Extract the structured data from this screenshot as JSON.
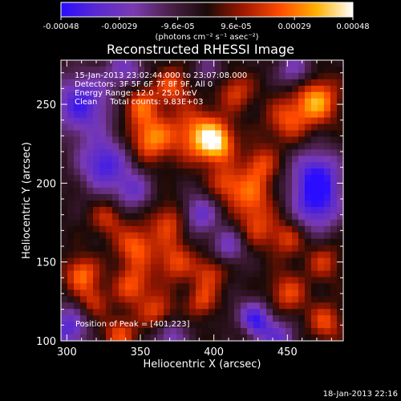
{
  "chart_data": {
    "type": "heatmap",
    "title": "Reconstructed RHESSI Image",
    "xlabel": "Heliocentric X (arcsec)",
    "ylabel": "Heliocentric Y (arcsec)",
    "xlim": [
      296,
      488
    ],
    "ylim": [
      100,
      278
    ],
    "x_ticks": [
      "300",
      "350",
      "400",
      "450"
    ],
    "y_ticks": [
      "100",
      "150",
      "200",
      "250"
    ],
    "colorbar": {
      "range": [
        -0.00048,
        0.00048
      ],
      "ticks": [
        "-0.00048",
        "-0.00029",
        "-9.6e-05",
        "9.6e-05",
        "0.00029",
        "0.00048"
      ],
      "unit_label": "(photons cm⁻² s⁻¹ asec⁻²)"
    },
    "info_lines": [
      "15-Jan-2013 23:02:44.000 to 23:07:08.000",
      "Detectors: 3F 5F 6F 7F 8F 9F, All 0",
      "Energy Range: 12.0 - 25.0 keV",
      "Clean     Total counts: 9.83E+03"
    ],
    "peak_label": "Position of Peak = [401,223]",
    "peak_position": [
      401,
      223
    ],
    "colors": {
      "scale": [
        "#2a0cff",
        "#5a2ad0",
        "#7a3ab0",
        "#4a2048",
        "#1a0a08",
        "#a01800",
        "#ff4a00",
        "#ffb000",
        "#ffffff"
      ]
    },
    "blobs": [
      {
        "x": 401,
        "y": 226,
        "amp": 1.0,
        "s": 9
      },
      {
        "x": 386,
        "y": 232,
        "amp": 0.6,
        "s": 12
      },
      {
        "x": 357,
        "y": 228,
        "amp": 0.75,
        "s": 10
      },
      {
        "x": 350,
        "y": 250,
        "amp": 0.6,
        "s": 9
      },
      {
        "x": 372,
        "y": 262,
        "amp": 0.55,
        "s": 8
      },
      {
        "x": 470,
        "y": 252,
        "amp": 0.85,
        "s": 10
      },
      {
        "x": 450,
        "y": 240,
        "amp": 0.55,
        "s": 10
      },
      {
        "x": 432,
        "y": 212,
        "amp": 0.55,
        "s": 8
      },
      {
        "x": 425,
        "y": 192,
        "amp": 0.6,
        "s": 10
      },
      {
        "x": 408,
        "y": 200,
        "amp": 0.5,
        "s": 8
      },
      {
        "x": 430,
        "y": 172,
        "amp": 0.45,
        "s": 9
      },
      {
        "x": 450,
        "y": 165,
        "amp": 0.5,
        "s": 8
      },
      {
        "x": 370,
        "y": 175,
        "amp": 0.55,
        "s": 9
      },
      {
        "x": 347,
        "y": 160,
        "amp": 0.65,
        "s": 9
      },
      {
        "x": 328,
        "y": 178,
        "amp": 0.45,
        "s": 8
      },
      {
        "x": 373,
        "y": 150,
        "amp": 0.55,
        "s": 9
      },
      {
        "x": 397,
        "y": 143,
        "amp": 0.5,
        "s": 8
      },
      {
        "x": 310,
        "y": 142,
        "amp": 0.7,
        "s": 8
      },
      {
        "x": 318,
        "y": 125,
        "amp": 0.45,
        "s": 7
      },
      {
        "x": 345,
        "y": 135,
        "amp": 0.6,
        "s": 9
      },
      {
        "x": 362,
        "y": 118,
        "amp": 0.55,
        "s": 8
      },
      {
        "x": 392,
        "y": 125,
        "amp": 0.5,
        "s": 7
      },
      {
        "x": 450,
        "y": 130,
        "amp": 0.55,
        "s": 9
      },
      {
        "x": 475,
        "y": 150,
        "amp": 0.45,
        "s": 8
      },
      {
        "x": 476,
        "y": 112,
        "amp": 0.55,
        "s": 8
      },
      {
        "x": 420,
        "y": 106,
        "amp": 0.4,
        "s": 6
      },
      {
        "x": 336,
        "y": 104,
        "amp": 0.55,
        "s": 8
      },
      {
        "x": 415,
        "y": 258,
        "amp": 0.5,
        "s": 8
      },
      {
        "x": 325,
        "y": 212,
        "amp": -0.9,
        "s": 12
      },
      {
        "x": 310,
        "y": 250,
        "amp": -0.9,
        "s": 14
      },
      {
        "x": 345,
        "y": 195,
        "amp": -0.6,
        "s": 9
      },
      {
        "x": 390,
        "y": 180,
        "amp": -0.7,
        "s": 9
      },
      {
        "x": 470,
        "y": 205,
        "amp": -0.9,
        "s": 12
      },
      {
        "x": 470,
        "y": 185,
        "amp": -0.8,
        "s": 12
      },
      {
        "x": 427,
        "y": 112,
        "amp": -1.0,
        "s": 9
      },
      {
        "x": 410,
        "y": 160,
        "amp": -0.6,
        "s": 8
      },
      {
        "x": 300,
        "y": 108,
        "amp": -0.8,
        "s": 10
      },
      {
        "x": 370,
        "y": 103,
        "amp": -0.6,
        "s": 8
      },
      {
        "x": 455,
        "y": 272,
        "amp": -0.6,
        "s": 8
      },
      {
        "x": 340,
        "y": 272,
        "amp": -0.6,
        "s": 9
      },
      {
        "x": 396,
        "y": 272,
        "amp": -0.4,
        "s": 7
      },
      {
        "x": 445,
        "y": 102,
        "amp": -0.6,
        "s": 8
      }
    ]
  },
  "footer": {
    "timestamp": "18-Jan-2013 22:16"
  }
}
